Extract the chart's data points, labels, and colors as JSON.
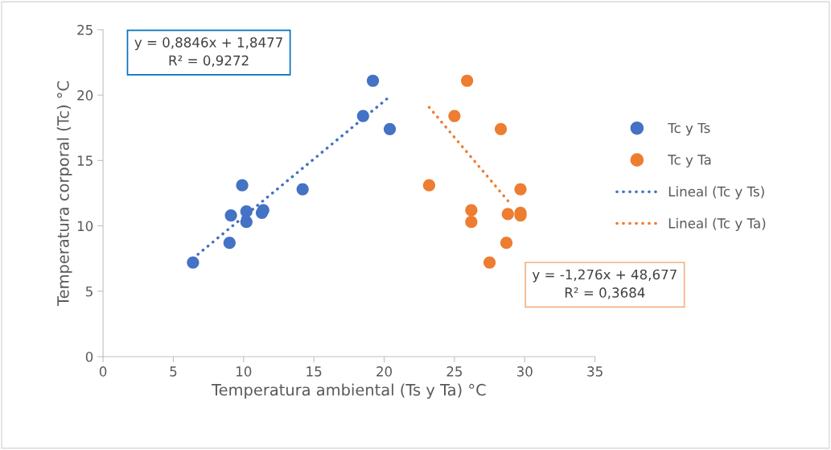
{
  "chart_data": {
    "type": "scatter",
    "xlabel": "Temperatura ambiental (Ts y Ta) °C",
    "ylabel": "Temperatura corporal (Tc) °C",
    "xlim": [
      0,
      35
    ],
    "xticks": [
      0,
      5,
      10,
      15,
      20,
      25,
      30,
      35
    ],
    "ylim": [
      0,
      25
    ],
    "yticks": [
      0,
      5,
      10,
      15,
      20,
      25
    ],
    "grid": false,
    "legend": "right",
    "series": [
      {
        "name": "Tc y Ts",
        "marker": "circle",
        "color": "#4472c4",
        "x": [
          6.4,
          9.0,
          9.1,
          9.9,
          10.2,
          10.2,
          11.3,
          11.4,
          14.2,
          18.5,
          19.2,
          20.4
        ],
        "values": [
          7.2,
          8.7,
          10.8,
          13.1,
          11.1,
          10.3,
          11.0,
          11.2,
          12.8,
          18.4,
          21.1,
          17.4
        ]
      },
      {
        "name": "Tc y Ta",
        "marker": "circle",
        "color": "#ed7d31",
        "x": [
          27.5,
          28.7,
          28.8,
          23.2,
          29.7,
          26.2,
          29.7,
          26.2,
          29.7,
          25.0,
          25.9,
          28.3
        ],
        "values": [
          7.2,
          8.7,
          10.9,
          13.1,
          11.0,
          10.3,
          10.8,
          11.2,
          12.8,
          18.4,
          21.1,
          17.4
        ]
      },
      {
        "name": "Lineal (Tc y Ts)",
        "type": "line",
        "line_style": "dotted",
        "color": "#4472c4",
        "x": [
          6.4,
          20.4
        ],
        "values": [
          7.51,
          19.89
        ]
      },
      {
        "name": "Lineal (Tc y Ta)",
        "type": "line",
        "line_style": "dotted",
        "color": "#ed7d31",
        "x": [
          23.2,
          29.0
        ],
        "values": [
          19.07,
          11.67
        ]
      }
    ],
    "annotations": [
      "y = 0,8846x + 1,8477\nR² = 0,9272",
      "y = -1,276x + 48,677\nR² = 0,3684"
    ]
  }
}
